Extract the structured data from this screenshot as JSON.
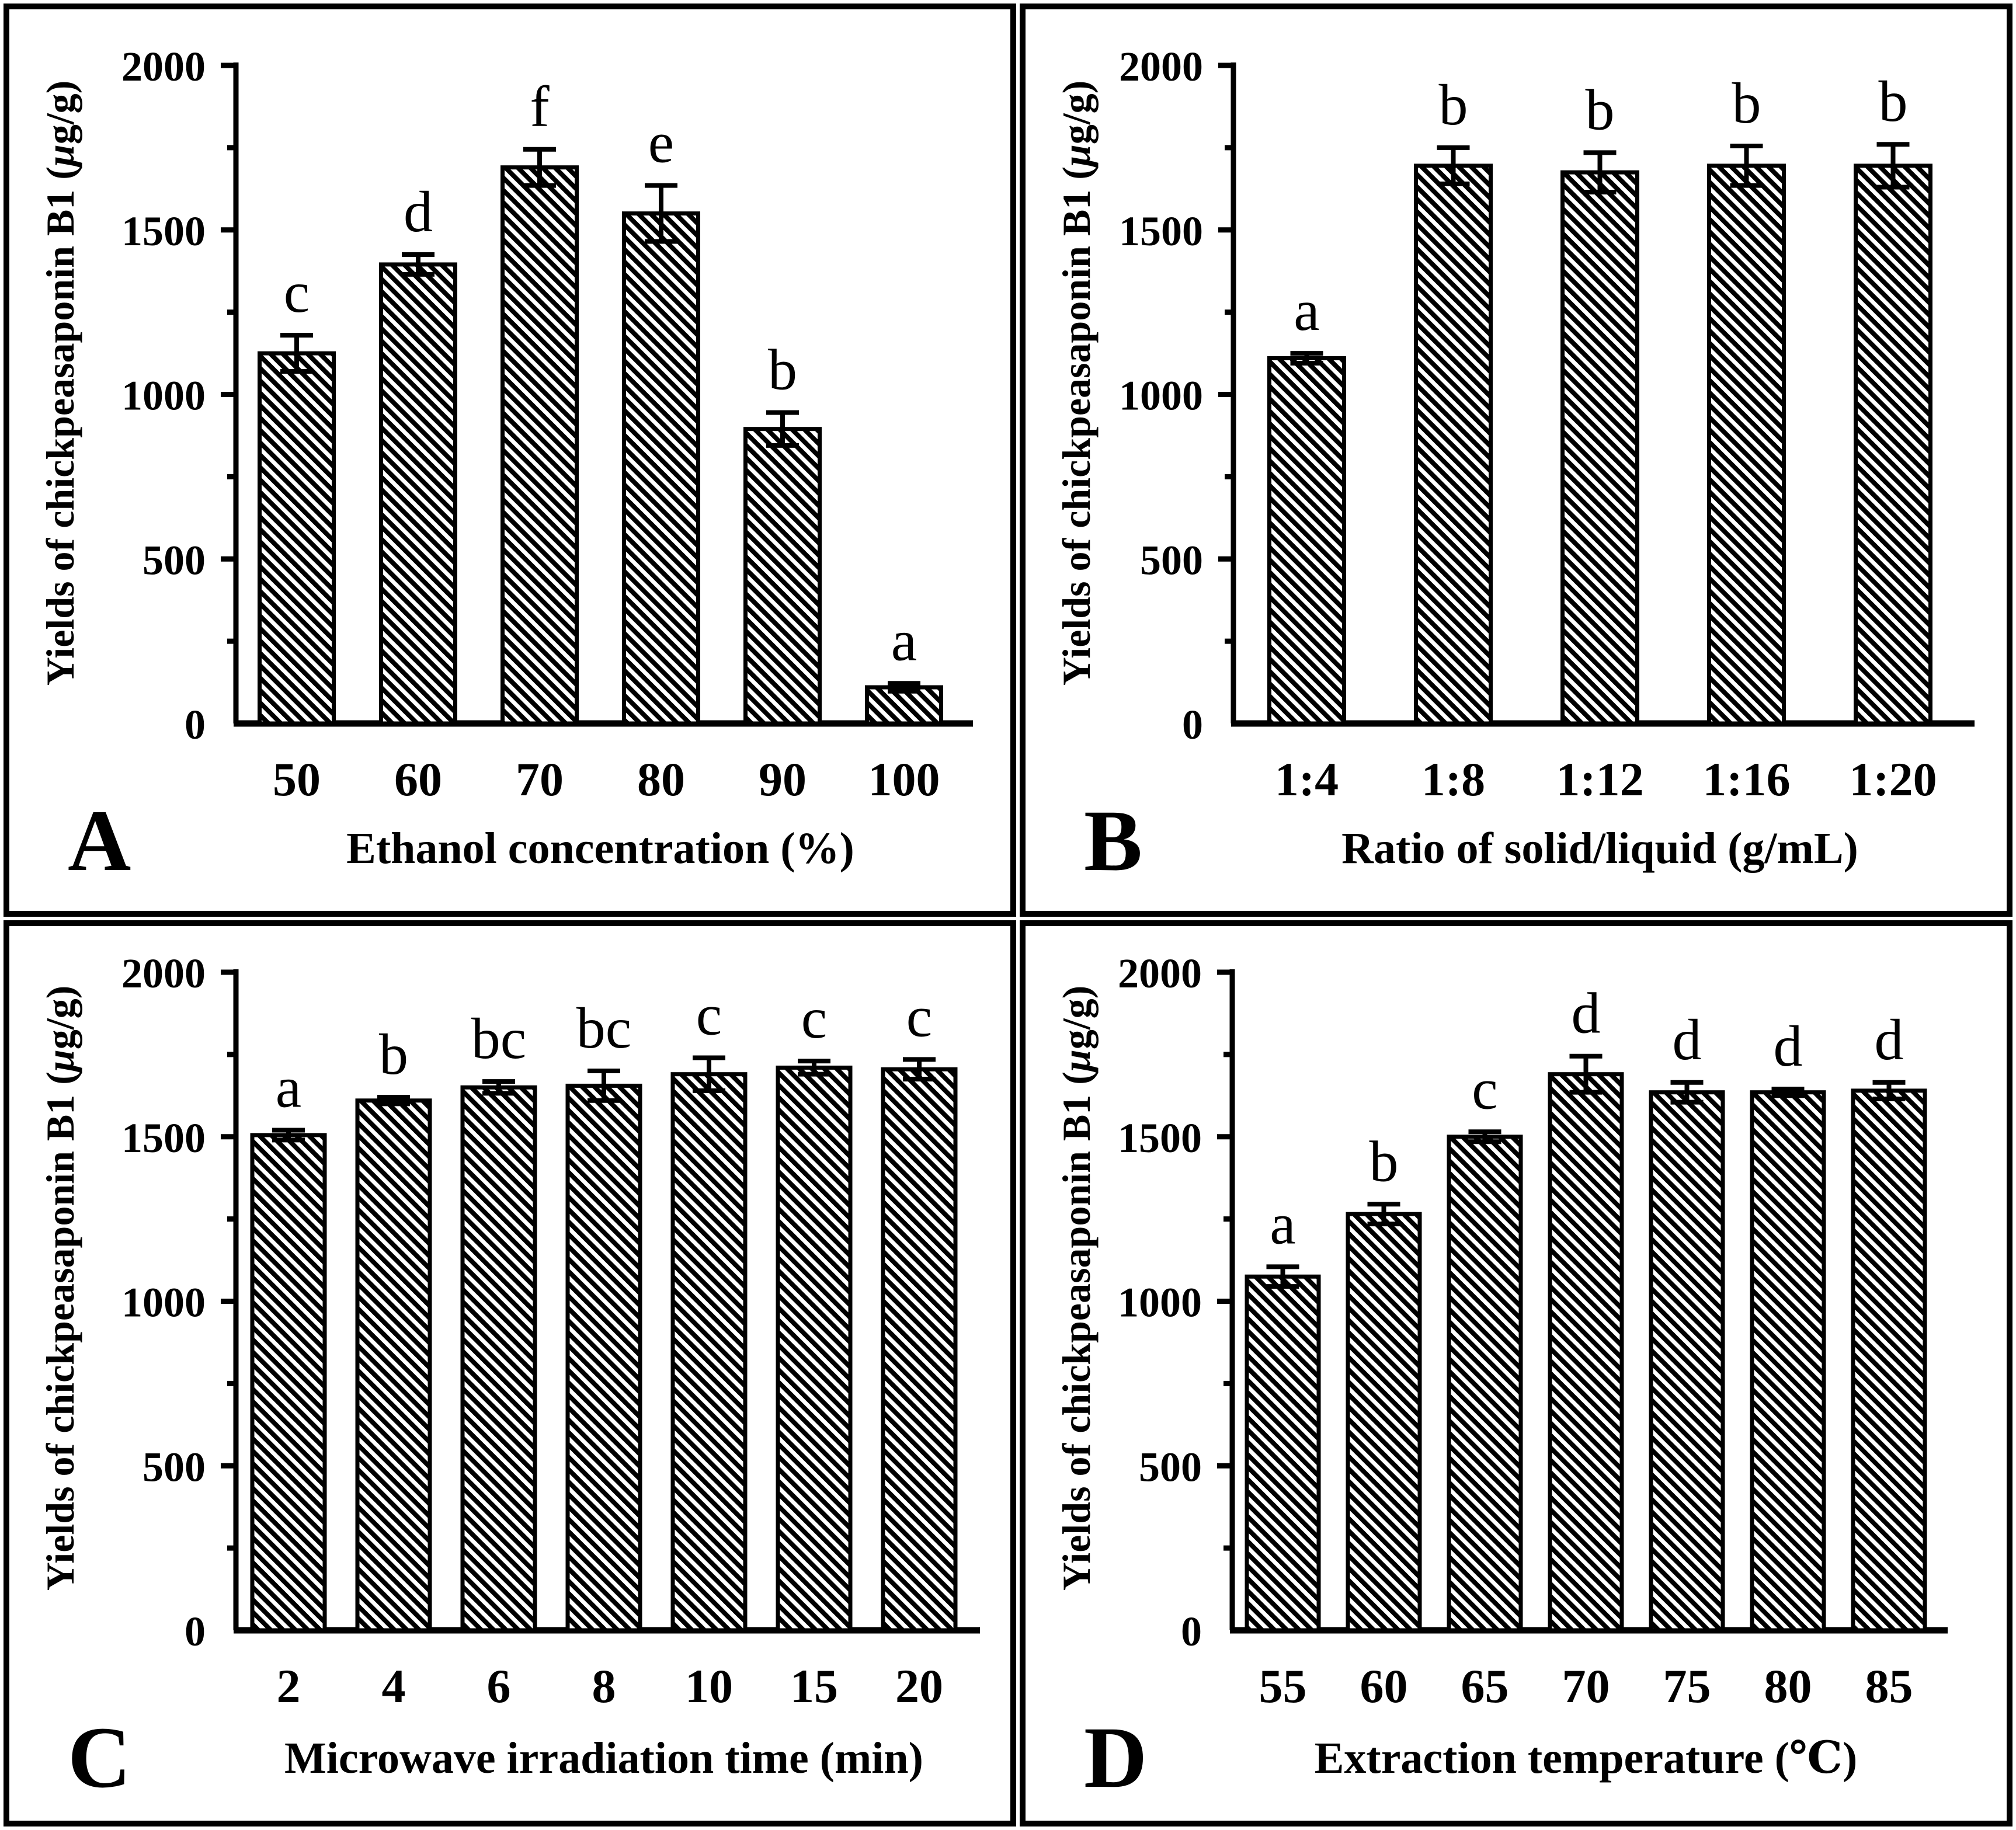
{
  "colors": {
    "ink": "#000000",
    "paper": "#ffffff"
  },
  "chart_data": [
    {
      "type": "bar",
      "panel_label": "A",
      "xlabel": "Ethanol concentration (%)",
      "ylabel": "Yields of chickpeasaponin B1 (μg/g)",
      "ylabel_parts": [
        "Yields of chickpeasaponin B1 (",
        "μ",
        "g/g)"
      ],
      "ylim": [
        0,
        2000
      ],
      "ytick_labels": [
        "0",
        "500",
        "1000",
        "1500",
        "2000"
      ],
      "ytick_major_step": 500,
      "ytick_minor_step": 250,
      "grid": false,
      "categories": [
        "50",
        "60",
        "70",
        "80",
        "90",
        "100"
      ],
      "values": [
        1125,
        1395,
        1690,
        1550,
        895,
        110
      ],
      "errors": [
        55,
        30,
        55,
        85,
        50,
        12
      ],
      "sig_letters": [
        "c",
        "d",
        "f",
        "e",
        "b",
        "a"
      ]
    },
    {
      "type": "bar",
      "panel_label": "B",
      "xlabel": "Ratio of solid/liquid (g/mL)",
      "ylabel": "Yields of chickpeasaponin B1 (μg/g)",
      "ylabel_parts": [
        "Yields of chickpeasaponin B1 (",
        "μ",
        "g/g)"
      ],
      "ylim": [
        0,
        2000
      ],
      "ytick_labels": [
        "0",
        "500",
        "1000",
        "1500",
        "2000"
      ],
      "ytick_major_step": 500,
      "ytick_minor_step": 250,
      "grid": false,
      "categories": [
        "1:4",
        "1:8",
        "1:12",
        "1:16",
        "1:20"
      ],
      "values": [
        1110,
        1695,
        1675,
        1695,
        1695
      ],
      "errors": [
        15,
        55,
        60,
        60,
        65
      ],
      "sig_letters": [
        "a",
        "b",
        "b",
        "b",
        "b"
      ]
    },
    {
      "type": "bar",
      "panel_label": "C",
      "xlabel": "Microwave irradiation time (min)",
      "ylabel": "Yields of chickpeasaponin B1 (μg/g)",
      "ylabel_parts": [
        "Yields of chickpeasaponin B1 (",
        "μ",
        "g/g)"
      ],
      "ylim": [
        0,
        2000
      ],
      "ytick_labels": [
        "0",
        "500",
        "1000",
        "1500",
        "2000"
      ],
      "ytick_major_step": 500,
      "ytick_minor_step": 250,
      "grid": false,
      "categories": [
        "2",
        "4",
        "6",
        "8",
        "10",
        "15",
        "20"
      ],
      "values": [
        1505,
        1610,
        1650,
        1655,
        1690,
        1710,
        1705
      ],
      "errors": [
        15,
        10,
        18,
        45,
        50,
        20,
        30
      ],
      "sig_letters": [
        "a",
        "b",
        "bc",
        "bc",
        "c",
        "c",
        "c"
      ]
    },
    {
      "type": "bar",
      "panel_label": "D",
      "xlabel": "Extraction temperature (℃)",
      "ylabel": "Yields of chickpeasaponin B1 (μg/g)",
      "ylabel_parts": [
        "Yields of chickpeasaponin B1 (",
        "μ",
        "g/g)"
      ],
      "ylim": [
        0,
        2000
      ],
      "ytick_labels": [
        "0",
        "500",
        "1000",
        "1500",
        "2000"
      ],
      "ytick_major_step": 500,
      "ytick_minor_step": 250,
      "grid": false,
      "categories": [
        "55",
        "60",
        "65",
        "70",
        "75",
        "80",
        "85"
      ],
      "values": [
        1075,
        1265,
        1500,
        1690,
        1635,
        1635,
        1640
      ],
      "errors": [
        30,
        30,
        15,
        55,
        30,
        10,
        25
      ],
      "sig_letters": [
        "a",
        "b",
        "c",
        "d",
        "d",
        "d",
        "d"
      ]
    }
  ]
}
